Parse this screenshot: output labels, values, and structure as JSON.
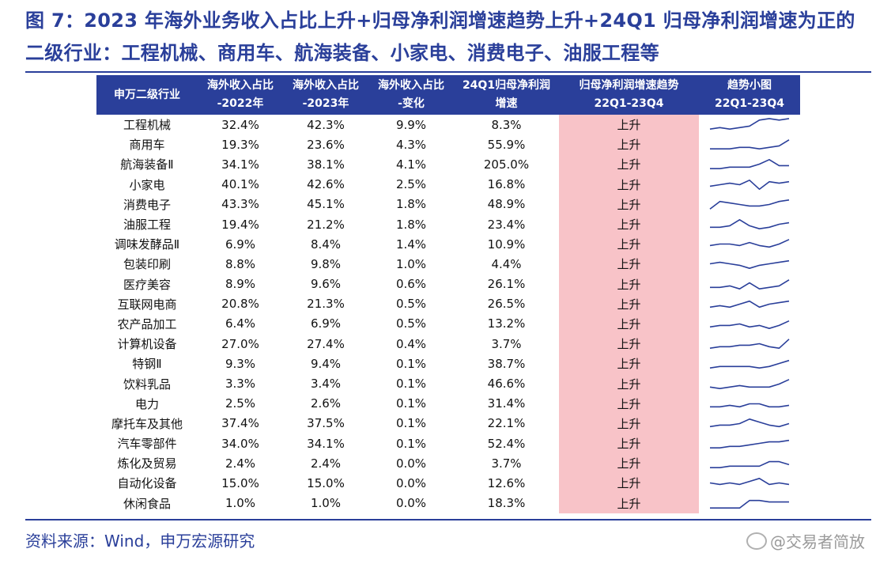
{
  "title": "图 7：2023 年海外业务收入占比上升+归母净利润增速趋势上升+24Q1 归母净利润增速为正的二级行业：工程机械、商用车、航海装备、小家电、消费电子、油服工程等",
  "headers": {
    "industry": "申万二级行业",
    "share2022_l1": "海外收入占比",
    "share2022_l2": "-2022年",
    "share2023_l1": "海外收入占比",
    "share2023_l2": "-2023年",
    "change_l1": "海外收入占比",
    "change_l2": "-变化",
    "growth_l1": "24Q1归母净利润",
    "growth_l2": "增速",
    "trend_l1": "归母净利润增速趋势",
    "trend_l2": "22Q1-23Q4",
    "spark_l1": "趋势小图",
    "spark_l2": "22Q1-23Q4"
  },
  "rows": [
    {
      "industry": "工程机械",
      "s22": "32.4%",
      "s23": "42.3%",
      "chg": "9.9%",
      "g": "8.3%",
      "trend": "上升",
      "spark": [
        2,
        3,
        2,
        3,
        4,
        8,
        9,
        8,
        9
      ]
    },
    {
      "industry": "商用车",
      "s22": "19.3%",
      "s23": "23.6%",
      "chg": "4.3%",
      "g": "55.9%",
      "trend": "上升",
      "spark": [
        2,
        2,
        2,
        3,
        3,
        2,
        3,
        4,
        8
      ]
    },
    {
      "industry": "航海装备Ⅱ",
      "s22": "34.1%",
      "s23": "38.1%",
      "chg": "4.1%",
      "g": "205.0%",
      "trend": "上升",
      "spark": [
        2,
        2,
        3,
        3,
        3,
        5,
        8,
        4,
        4
      ]
    },
    {
      "industry": "小家电",
      "s22": "40.1%",
      "s23": "42.6%",
      "chg": "2.5%",
      "g": "16.8%",
      "trend": "上升",
      "spark": [
        4,
        5,
        6,
        5,
        8,
        2,
        7,
        6,
        7
      ]
    },
    {
      "industry": "消费电子",
      "s22": "43.3%",
      "s23": "45.1%",
      "chg": "1.8%",
      "g": "48.9%",
      "trend": "上升",
      "spark": [
        2,
        7,
        6,
        5,
        4,
        4,
        5,
        7,
        8
      ]
    },
    {
      "industry": "油服工程",
      "s22": "19.4%",
      "s23": "21.2%",
      "chg": "1.8%",
      "g": "23.4%",
      "trend": "上升",
      "spark": [
        3,
        3,
        4,
        8,
        4,
        2,
        3,
        5,
        6
      ]
    },
    {
      "industry": "调味发酵品Ⅱ",
      "s22": "6.9%",
      "s23": "8.4%",
      "chg": "1.4%",
      "g": "10.9%",
      "trend": "上升",
      "spark": [
        4,
        5,
        5,
        4,
        6,
        4,
        3,
        5,
        8
      ]
    },
    {
      "industry": "包装印刷",
      "s22": "8.8%",
      "s23": "9.8%",
      "chg": "1.0%",
      "g": "4.4%",
      "trend": "上升",
      "spark": [
        5,
        6,
        5,
        4,
        2,
        4,
        5,
        6,
        7
      ]
    },
    {
      "industry": "医疗美容",
      "s22": "8.9%",
      "s23": "9.6%",
      "chg": "0.6%",
      "g": "26.1%",
      "trend": "上升",
      "spark": [
        3,
        3,
        4,
        2,
        6,
        2,
        3,
        4,
        8
      ]
    },
    {
      "industry": "互联网电商",
      "s22": "20.8%",
      "s23": "21.3%",
      "chg": "0.5%",
      "g": "26.5%",
      "trend": "上升",
      "spark": [
        3,
        4,
        3,
        5,
        7,
        3,
        5,
        6,
        7
      ]
    },
    {
      "industry": "农产品加工",
      "s22": "6.4%",
      "s23": "6.9%",
      "chg": "0.5%",
      "g": "13.2%",
      "trend": "上升",
      "spark": [
        3,
        4,
        4,
        5,
        3,
        4,
        2,
        4,
        7
      ]
    },
    {
      "industry": "计算机设备",
      "s22": "27.0%",
      "s23": "27.4%",
      "chg": "0.4%",
      "g": "3.7%",
      "trend": "上升",
      "spark": [
        2,
        3,
        3,
        4,
        4,
        5,
        3,
        2,
        8
      ]
    },
    {
      "industry": "特钢Ⅱ",
      "s22": "9.3%",
      "s23": "9.4%",
      "chg": "0.1%",
      "g": "38.7%",
      "trend": "上升",
      "spark": [
        2,
        3,
        3,
        3,
        3,
        2,
        3,
        5,
        7
      ]
    },
    {
      "industry": "饮料乳品",
      "s22": "3.3%",
      "s23": "3.4%",
      "chg": "0.1%",
      "g": "46.6%",
      "trend": "上升",
      "spark": [
        3,
        2,
        3,
        4,
        3,
        3,
        3,
        5,
        8
      ]
    },
    {
      "industry": "电力",
      "s22": "2.5%",
      "s23": "2.6%",
      "chg": "0.1%",
      "g": "31.4%",
      "trend": "上升",
      "spark": [
        3,
        3,
        4,
        3,
        5,
        5,
        3,
        3,
        4
      ]
    },
    {
      "industry": "摩托车及其他",
      "s22": "37.4%",
      "s23": "37.5%",
      "chg": "0.1%",
      "g": "22.1%",
      "trend": "上升",
      "spark": [
        3,
        4,
        4,
        5,
        8,
        6,
        4,
        3,
        5
      ]
    },
    {
      "industry": "汽车零部件",
      "s22": "34.0%",
      "s23": "34.1%",
      "chg": "0.1%",
      "g": "52.4%",
      "trend": "上升",
      "spark": [
        2,
        2,
        3,
        3,
        4,
        5,
        6,
        6,
        7
      ]
    },
    {
      "industry": "炼化及贸易",
      "s22": "2.4%",
      "s23": "2.4%",
      "chg": "0.0%",
      "g": "3.7%",
      "trend": "上升",
      "spark": [
        2,
        2,
        3,
        3,
        3,
        3,
        6,
        6,
        4
      ]
    },
    {
      "industry": "自动化设备",
      "s22": "15.0%",
      "s23": "15.0%",
      "chg": "0.0%",
      "g": "12.6%",
      "trend": "上升",
      "spark": [
        5,
        4,
        5,
        4,
        6,
        8,
        4,
        5,
        4
      ]
    },
    {
      "industry": "休闲食品",
      "s22": "1.0%",
      "s23": "1.0%",
      "chg": "0.0%",
      "g": "18.3%",
      "trend": "上升",
      "spark": [
        2,
        2,
        2,
        2,
        7,
        7,
        6,
        6,
        6
      ]
    }
  ],
  "source": "资料来源：Wind，申万宏源研究",
  "watermark": "@交易者简放",
  "colors": {
    "brand": "#2a3f9a",
    "trend_bg": "#f8c3c8",
    "trend_text": "#c0121a",
    "spark_line": "#2a3f9a"
  }
}
